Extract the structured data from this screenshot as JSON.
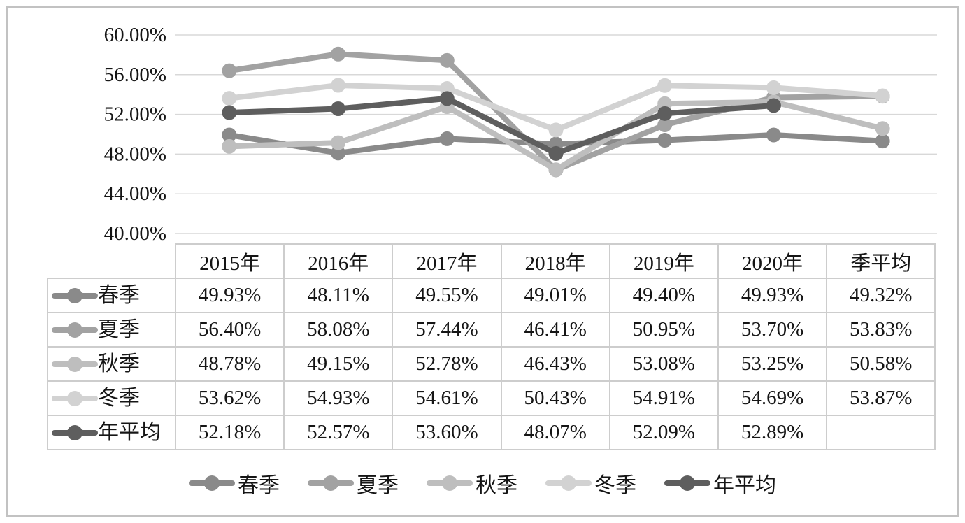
{
  "figure": {
    "background": "#ffffff",
    "frame_border_color": "#c2c2c2"
  },
  "chart_data": {
    "type": "line",
    "categories": [
      "2015年",
      "2016年",
      "2017年",
      "2018年",
      "2019年",
      "2020年",
      "季平均"
    ],
    "series": [
      {
        "key": "spring",
        "name": "春季",
        "color": "#8a8a8a",
        "values": [
          49.93,
          48.11,
          49.55,
          49.01,
          49.4,
          49.93,
          49.32
        ]
      },
      {
        "key": "summer",
        "name": "夏季",
        "color": "#a2a2a2",
        "values": [
          56.4,
          58.08,
          57.44,
          46.41,
          50.95,
          53.7,
          53.83
        ]
      },
      {
        "key": "autumn",
        "name": "秋季",
        "color": "#bebebe",
        "values": [
          48.78,
          49.15,
          52.78,
          46.43,
          53.08,
          53.25,
          50.58
        ]
      },
      {
        "key": "winter",
        "name": "冬季",
        "color": "#d2d2d2",
        "values": [
          53.62,
          54.93,
          54.61,
          50.43,
          54.91,
          54.69,
          53.87
        ]
      },
      {
        "key": "annual-average",
        "name": "年平均",
        "color": "#5e5e5e",
        "values": [
          52.18,
          52.57,
          53.6,
          48.07,
          52.09,
          52.89,
          null
        ]
      }
    ],
    "y_axis": {
      "min": 40,
      "max": 60,
      "tick_step": 4,
      "tick_labels": [
        "60.00%",
        "56.00%",
        "52.00%",
        "48.00%",
        "44.00%",
        "40.00%"
      ],
      "format": "percent"
    },
    "grid": true,
    "gridline_color": "#d8d8d8",
    "legend_position": "bottom",
    "marker": "circle"
  },
  "table": {
    "col_headers": [
      "2015年",
      "2016年",
      "2017年",
      "2018年",
      "2019年",
      "2020年",
      "季平均"
    ],
    "rows": [
      {
        "key": "spring",
        "label": "春季",
        "cells": [
          "49.93%",
          "48.11%",
          "49.55%",
          "49.01%",
          "49.40%",
          "49.93%",
          "49.32%"
        ]
      },
      {
        "key": "summer",
        "label": "夏季",
        "cells": [
          "56.40%",
          "58.08%",
          "57.44%",
          "46.41%",
          "50.95%",
          "53.70%",
          "53.83%"
        ]
      },
      {
        "key": "autumn",
        "label": "秋季",
        "cells": [
          "48.78%",
          "49.15%",
          "52.78%",
          "46.43%",
          "53.08%",
          "53.25%",
          "50.58%"
        ]
      },
      {
        "key": "winter",
        "label": "冬季",
        "cells": [
          "53.62%",
          "54.93%",
          "54.61%",
          "50.43%",
          "54.91%",
          "54.69%",
          "53.87%"
        ]
      },
      {
        "key": "annual-average",
        "label": "年平均",
        "cells": [
          "52.18%",
          "52.57%",
          "53.60%",
          "48.07%",
          "52.09%",
          "52.89%",
          ""
        ]
      }
    ]
  },
  "legend": {
    "items": [
      {
        "key": "spring",
        "label": "春季"
      },
      {
        "key": "summer",
        "label": "夏季"
      },
      {
        "key": "autumn",
        "label": "秋季"
      },
      {
        "key": "winter",
        "label": "冬季"
      },
      {
        "key": "annual-average",
        "label": "年平均"
      }
    ]
  }
}
